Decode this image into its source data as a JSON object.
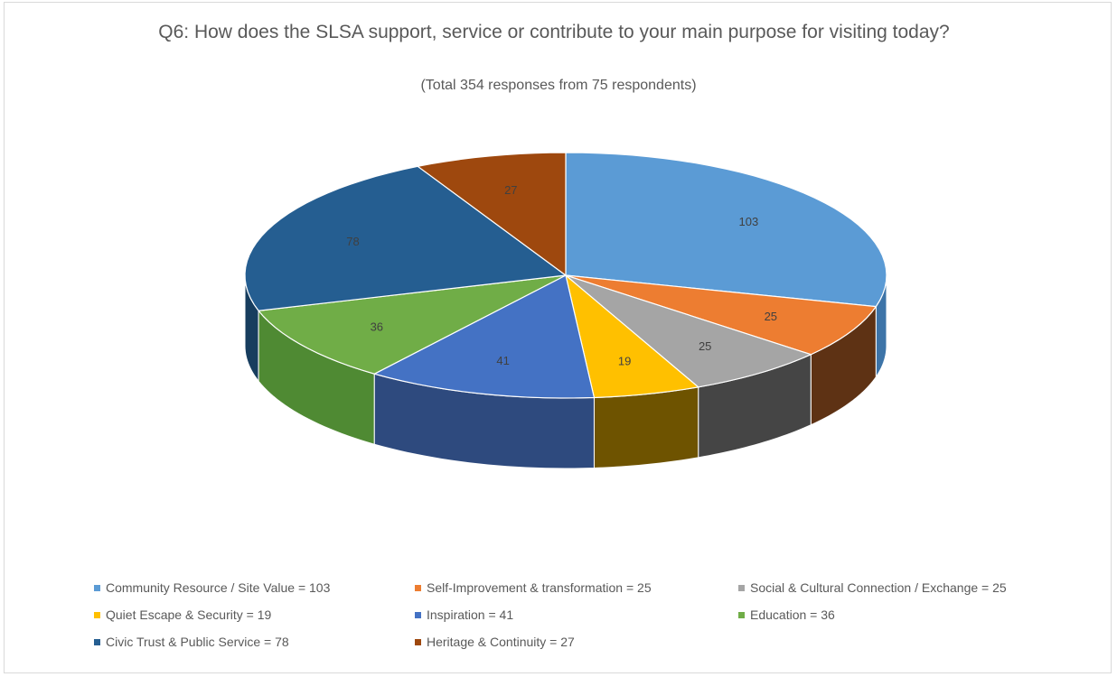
{
  "chart_data": {
    "type": "pie",
    "title": "Q6: How does the SLSA support, service or contribute to your main purpose for visiting today?",
    "subtitle": "(Total 354 responses from 75 respondents)",
    "style": "3d",
    "legend_position": "bottom",
    "slices": [
      {
        "label": "Community Resource / Site Value",
        "value": 103,
        "legend": "Community Resource / Site Value = 103",
        "color": "#5b9bd5",
        "side": "#3d74a8"
      },
      {
        "label": "Self-Improvement & transformation",
        "value": 25,
        "legend": "Self-Improvement & transformation = 25",
        "color": "#ed7d31",
        "side": "#5e3214"
      },
      {
        "label": "Social & Cultural Connection / Exchange",
        "value": 25,
        "legend": "Social & Cultural Connection / Exchange = 25",
        "color": "#a5a5a5",
        "side": "#454545"
      },
      {
        "label": "Quiet Escape & Security",
        "value": 19,
        "legend": "Quiet Escape & Security = 19",
        "color": "#ffc000",
        "side": "#6e5300"
      },
      {
        "label": "Inspiration",
        "value": 41,
        "legend": "Inspiration = 41",
        "color": "#4472c4",
        "side": "#2e4a7e"
      },
      {
        "label": "Education",
        "value": 36,
        "legend": "Education = 36",
        "color": "#70ad47",
        "side": "#4f8a33"
      },
      {
        "label": "Civic Trust & Public Service",
        "value": 78,
        "legend": "Civic Trust & Public Service = 78",
        "color": "#255e91",
        "side": "#173d5e"
      },
      {
        "label": "Heritage & Continuity",
        "value": 27,
        "legend": "Heritage & Continuity = 27",
        "color": "#9e480e",
        "side": "#5e2a08"
      }
    ]
  }
}
